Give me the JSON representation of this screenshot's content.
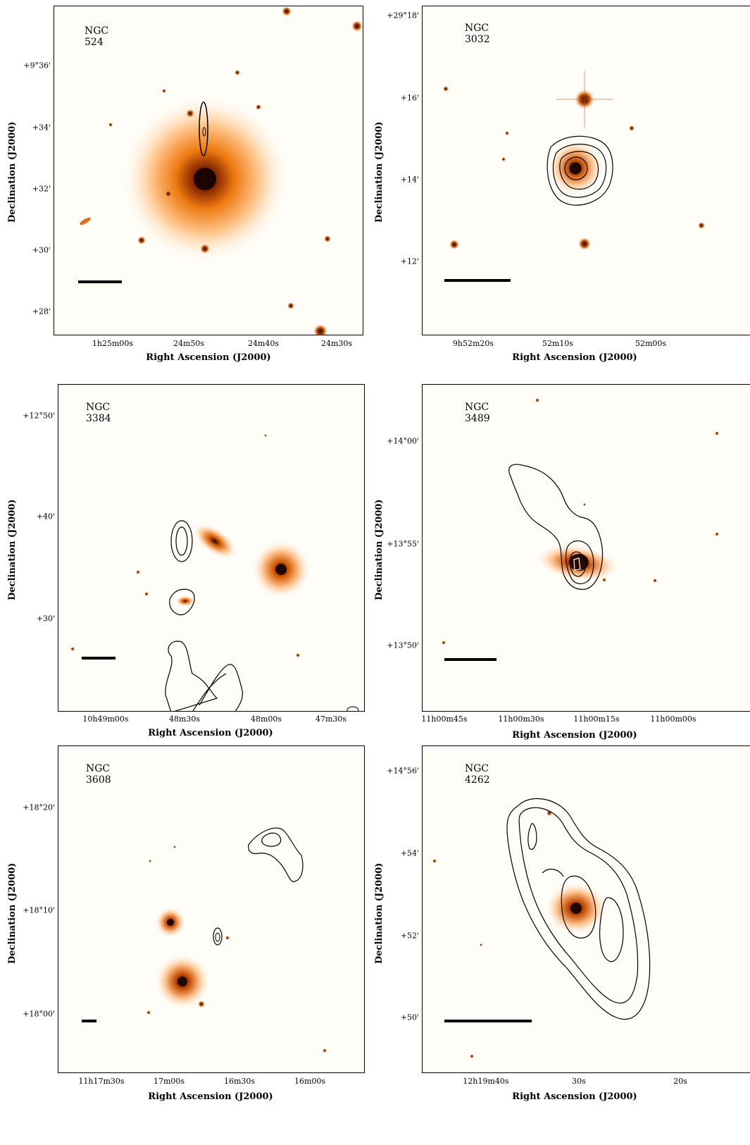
{
  "x_axis_label": "Right Ascension (J2000)",
  "y_axis_label": "Declination (J2000)",
  "panels": [
    {
      "name": "NGC 524",
      "x_ticks": [
        "1h25m00s",
        "24m50s",
        "24m40s",
        "24m30s"
      ],
      "y_ticks": [
        "+9°36'",
        "+34'",
        "+32'",
        "+30'",
        "+28'"
      ]
    },
    {
      "name": "NGC 3032",
      "x_ticks": [
        "9h52m20s",
        "52m10s",
        "52m00s"
      ],
      "y_ticks": [
        "+29°18'",
        "+16'",
        "+14'",
        "+12'"
      ]
    },
    {
      "name": "NGC 3384",
      "x_ticks": [
        "10h49m00s",
        "48m30s",
        "48m00s",
        "47m30s"
      ],
      "y_ticks": [
        "+12°50'",
        "+40'",
        "+30'"
      ]
    },
    {
      "name": "NGC 3489",
      "x_ticks": [
        "11h00m45s",
        "11h00m30s",
        "11h00m15s",
        "11h00m00s"
      ],
      "y_ticks": [
        "+14°00'",
        "+13°55'",
        "+13°50'"
      ]
    },
    {
      "name": "NGC 3608",
      "x_ticks": [
        "11h17m30s",
        "17m00s",
        "16m30s",
        "16m00s"
      ],
      "y_ticks": [
        "+18°20'",
        "+18°10'",
        "+18°00'"
      ]
    },
    {
      "name": "NGC 4262",
      "x_ticks": [
        "12h19m40s",
        "30s",
        "20s"
      ],
      "y_ticks": [
        "+14°56'",
        "+54'",
        "+52'",
        "+50'"
      ]
    }
  ]
}
